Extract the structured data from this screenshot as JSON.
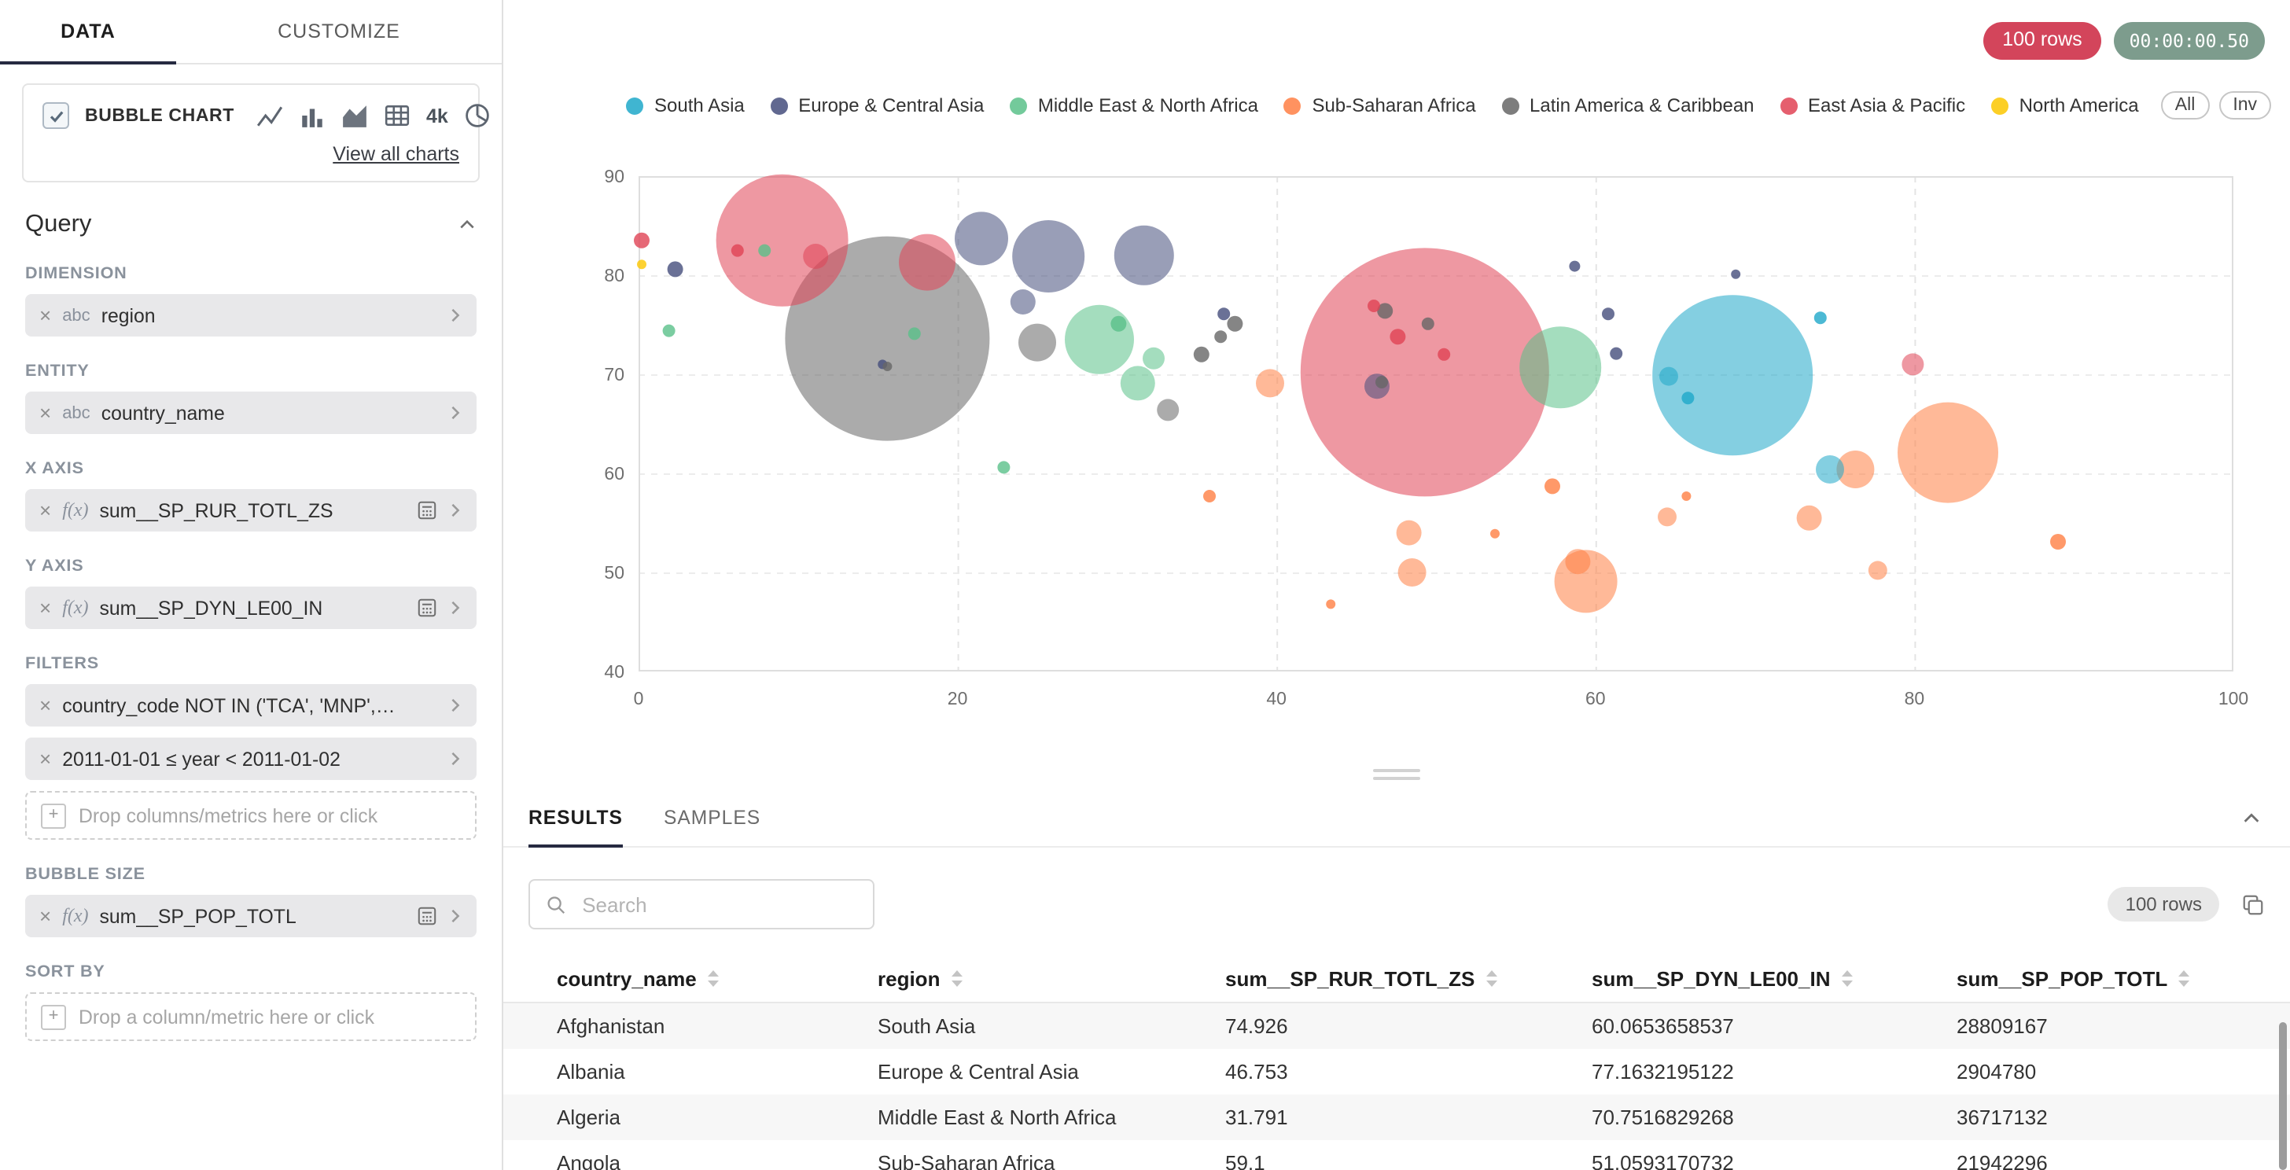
{
  "icons": {
    "remove": "×",
    "add": "+"
  },
  "sidebar": {
    "tabs": [
      {
        "label": "DATA",
        "active": true
      },
      {
        "label": "CUSTOMIZE",
        "active": false
      }
    ],
    "viz": {
      "name": "BUBBLE CHART",
      "selected": true,
      "resolution": "4k",
      "view_all": "View all charts"
    },
    "query_title": "Query",
    "sections": [
      {
        "label": "DIMENSION",
        "items": [
          {
            "kind": "pill",
            "prefix": "abc",
            "label": "region"
          }
        ]
      },
      {
        "label": "ENTITY",
        "items": [
          {
            "kind": "pill",
            "prefix": "abc",
            "label": "country_name"
          }
        ]
      },
      {
        "label": "X AXIS",
        "items": [
          {
            "kind": "pill",
            "prefix": "f(x)",
            "label": "sum__SP_RUR_TOTL_ZS",
            "calc": true
          }
        ]
      },
      {
        "label": "Y AXIS",
        "items": [
          {
            "kind": "pill",
            "prefix": "f(x)",
            "label": "sum__SP_DYN_LE00_IN",
            "calc": true
          }
        ]
      },
      {
        "label": "FILTERS",
        "items": [
          {
            "kind": "pill",
            "label": "country_code NOT IN ('TCA', 'MNP',…"
          },
          {
            "kind": "pill",
            "label": "2011-01-01 ≤ year < 2011-01-02"
          },
          {
            "kind": "drop",
            "label": "Drop columns/metrics here or click"
          }
        ]
      },
      {
        "label": "BUBBLE SIZE",
        "items": [
          {
            "kind": "pill",
            "prefix": "f(x)",
            "label": "sum__SP_POP_TOTL",
            "calc": true
          }
        ]
      },
      {
        "label": "SORT BY",
        "items": [
          {
            "kind": "drop",
            "label": "Drop a column/metric here or click"
          }
        ]
      }
    ]
  },
  "header": {
    "rows_badge": "100 rows",
    "rows_badge_color": "#d3455b",
    "timer": "00:00:00.50",
    "timer_color": "#7d9c8d"
  },
  "legend": {
    "all_label": "All",
    "inv_label": "Inv",
    "position": "top"
  },
  "chart_data": {
    "type": "bubble",
    "x_metric": "sum__SP_RUR_TOTL_ZS",
    "y_metric": "sum__SP_DYN_LE00_IN",
    "size_metric": "sum__SP_POP_TOTL",
    "xlim": [
      0,
      100
    ],
    "ylim": [
      40,
      90
    ],
    "x_ticks": [
      0,
      20,
      40,
      60,
      80,
      100
    ],
    "y_ticks": [
      40,
      50,
      60,
      70,
      80,
      90
    ],
    "grid": true,
    "series": [
      {
        "name": "South Asia",
        "color": "#1fa8c9",
        "points": [
          [
            68.6,
            69.9,
            51
          ],
          [
            64.6,
            69.8,
            6
          ],
          [
            65.8,
            67.6,
            4
          ],
          [
            74.7,
            60.4,
            9
          ],
          [
            74.1,
            75.7,
            4
          ]
        ]
      },
      {
        "name": "Europe & Central Asia",
        "color": "#454e7c",
        "points": [
          [
            21.5,
            83.7,
            17
          ],
          [
            25.7,
            81.9,
            23
          ],
          [
            31.7,
            82.0,
            19
          ],
          [
            24.1,
            77.3,
            8
          ],
          [
            46.3,
            68.8,
            8
          ],
          [
            58.7,
            80.9,
            3.5
          ],
          [
            60.8,
            76.1,
            4
          ],
          [
            68.8,
            80.1,
            3
          ],
          [
            61.3,
            72.1,
            4
          ],
          [
            2.3,
            80.6,
            5
          ],
          [
            15.3,
            71.0,
            3
          ],
          [
            36.7,
            76.1,
            4
          ]
        ]
      },
      {
        "name": "Middle East & North Africa",
        "color": "#5ac189",
        "points": [
          [
            28.9,
            73.5,
            22
          ],
          [
            31.3,
            69.1,
            11
          ],
          [
            32.3,
            71.6,
            7
          ],
          [
            57.8,
            70.7,
            26
          ],
          [
            22.9,
            60.6,
            4
          ],
          [
            7.9,
            82.5,
            4
          ],
          [
            1.9,
            74.4,
            4
          ],
          [
            17.3,
            74.1,
            4
          ],
          [
            30.1,
            75.1,
            5
          ]
        ]
      },
      {
        "name": "Sub-Saharan Africa",
        "color": "#ff7f44",
        "points": [
          [
            39.6,
            69.1,
            9
          ],
          [
            59.4,
            49.1,
            20
          ],
          [
            82.1,
            62.1,
            32
          ],
          [
            76.3,
            60.4,
            12
          ],
          [
            48.3,
            54.0,
            8
          ],
          [
            48.5,
            50.0,
            9
          ],
          [
            35.8,
            57.7,
            4
          ],
          [
            64.5,
            55.6,
            6
          ],
          [
            73.4,
            55.5,
            8
          ],
          [
            77.7,
            50.2,
            6
          ],
          [
            89.0,
            53.1,
            5
          ],
          [
            43.4,
            46.8,
            3
          ],
          [
            53.7,
            53.9,
            3
          ],
          [
            58.9,
            51.1,
            8
          ],
          [
            57.3,
            58.7,
            5
          ],
          [
            65.7,
            57.7,
            3
          ]
        ]
      },
      {
        "name": "Latin America & Caribbean",
        "color": "#666666",
        "points": [
          [
            15.6,
            73.6,
            65
          ],
          [
            25.0,
            73.2,
            12
          ],
          [
            33.2,
            66.4,
            7
          ],
          [
            37.4,
            75.1,
            5
          ],
          [
            35.3,
            72.0,
            5
          ],
          [
            46.8,
            76.4,
            5
          ],
          [
            49.5,
            75.1,
            4
          ],
          [
            15.6,
            70.8,
            3
          ],
          [
            46.6,
            69.2,
            4
          ],
          [
            36.5,
            73.8,
            4
          ]
        ]
      },
      {
        "name": "East Asia & Pacific",
        "color": "#e04355",
        "points": [
          [
            9.0,
            83.5,
            42
          ],
          [
            18.1,
            81.3,
            18
          ],
          [
            49.3,
            70.2,
            79
          ],
          [
            11.1,
            81.9,
            8
          ],
          [
            6.2,
            82.5,
            4
          ],
          [
            79.9,
            71.0,
            7
          ],
          [
            0.2,
            83.5,
            5
          ],
          [
            46.1,
            76.9,
            4
          ],
          [
            47.6,
            73.8,
            5
          ],
          [
            50.5,
            72.0,
            4
          ]
        ]
      },
      {
        "name": "North America",
        "color": "#fcc700",
        "points": [
          [
            0.2,
            81.1,
            3
          ]
        ]
      }
    ]
  },
  "results": {
    "tabs": [
      "RESULTS",
      "SAMPLES"
    ],
    "search_placeholder": "Search",
    "rows_badge": "100 rows",
    "table": {
      "columns": [
        "country_name",
        "region",
        "sum__SP_RUR_TOTL_ZS",
        "sum__SP_DYN_LE00_IN",
        "sum__SP_POP_TOTL"
      ],
      "rows": [
        [
          "Afghanistan",
          "South Asia",
          "74.926",
          "60.0653658537",
          "28809167"
        ],
        [
          "Albania",
          "Europe & Central Asia",
          "46.753",
          "77.1632195122",
          "2904780"
        ],
        [
          "Algeria",
          "Middle East & North Africa",
          "31.791",
          "70.7516829268",
          "36717132"
        ],
        [
          "Angola",
          "Sub-Saharan Africa",
          "59.1",
          "51.0593170732",
          "21942296"
        ]
      ]
    }
  }
}
